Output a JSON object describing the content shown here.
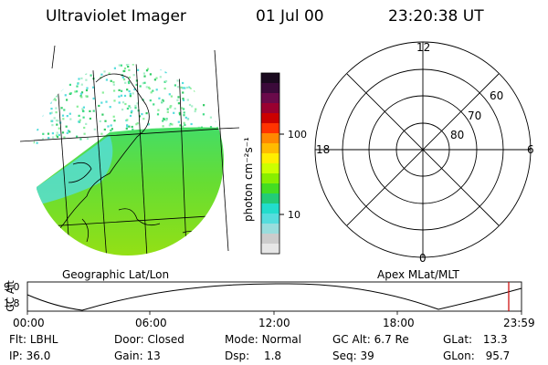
{
  "header": {
    "title": "Ultraviolet Imager",
    "date": "01 Jul 00",
    "time": "23:20:38 UT"
  },
  "left_panel": {
    "caption": "Geographic Lat/Lon"
  },
  "colorbar": {
    "unit_label": "photon cm⁻²s⁻¹",
    "ticks": [
      "100",
      "10"
    ],
    "colors": [
      "#1a0a1f",
      "#3b0a3a",
      "#6a0a4a",
      "#9a0030",
      "#cc0000",
      "#ff3300",
      "#ff8800",
      "#ffbb00",
      "#ffee00",
      "#ccff00",
      "#88ee00",
      "#44dd22",
      "#22cc77",
      "#22ddcc",
      "#55dddd",
      "#99dddd",
      "#cccccc",
      "#e6e6e6"
    ]
  },
  "polar_plot": {
    "caption": "Apex MLat/MLT",
    "mlt_labels": {
      "top": "12",
      "bottom": "0",
      "left": "18",
      "right": "6"
    },
    "lat_labels": [
      "60",
      "70",
      "80"
    ]
  },
  "timeline": {
    "y_axis_label": "GC Alt",
    "y_ticks": [
      "9.0",
      "1.8"
    ],
    "x_ticks": [
      "00:00",
      "06:00",
      "12:00",
      "18:00",
      "23:59"
    ],
    "marker_color": "#cc0000"
  },
  "footer": {
    "flt_label": "Flt:",
    "flt_value": "LBHL",
    "ip_label": "IP:",
    "ip_value": "36.0",
    "door_label": "Door:",
    "door_value": "Closed",
    "gain_label": "Gain:",
    "gain_value": "13",
    "mode_label": "Mode:",
    "mode_value": "Normal",
    "dsp_label": "Dsp:",
    "dsp_value": "1.8",
    "gcalt_label": "GC Alt:",
    "gcalt_value": "6.7 Re",
    "seq_label": "Seq:",
    "seq_value": "39",
    "glat_label": "GLat:",
    "glat_value": "13.3",
    "glon_label": "GLon:",
    "glon_value": "95.7"
  }
}
